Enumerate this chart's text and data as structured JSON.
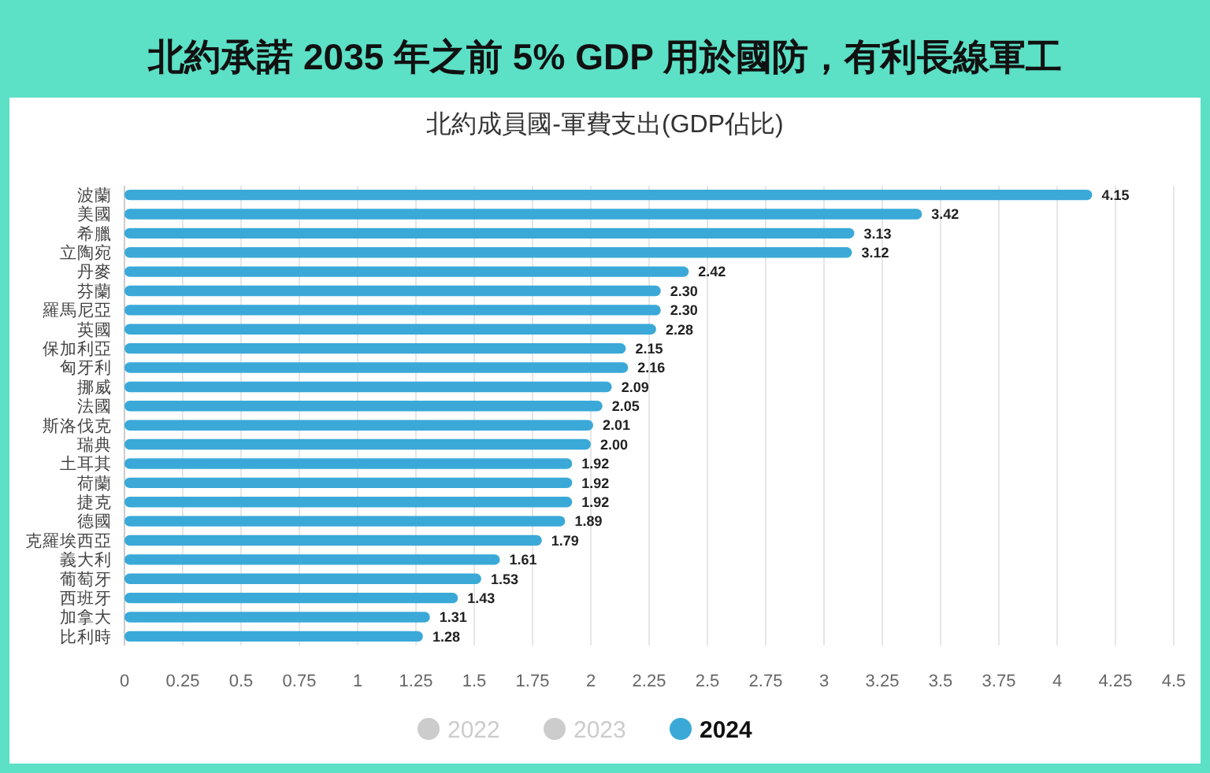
{
  "chart_data": {
    "type": "bar",
    "orientation": "horizontal",
    "title": "北約承諾 2035 年之前 5% GDP 用於國防，有利長線軍工",
    "subtitle": "北約成員國-軍費支出(GDP佔比)",
    "categories": [
      "波蘭",
      "美國",
      "希臘",
      "立陶宛",
      "丹麥",
      "芬蘭",
      "羅馬尼亞",
      "英國",
      "保加利亞",
      "匈牙利",
      "挪威",
      "法國",
      "斯洛伐克",
      "瑞典",
      "土耳其",
      "荷蘭",
      "捷克",
      "德國",
      "克羅埃西亞",
      "義大利",
      "葡萄牙",
      "西班牙",
      "加拿大",
      "比利時"
    ],
    "series": [
      {
        "name": "2022",
        "color": "#cccccc",
        "values": [
          null,
          null,
          null,
          null,
          null,
          null,
          null,
          null,
          null,
          null,
          null,
          null,
          null,
          null,
          null,
          null,
          null,
          null,
          null,
          null,
          null,
          null,
          null,
          null
        ]
      },
      {
        "name": "2023",
        "color": "#cccccc",
        "values": [
          null,
          null,
          null,
          null,
          null,
          null,
          null,
          null,
          null,
          null,
          null,
          null,
          null,
          null,
          null,
          null,
          null,
          null,
          null,
          null,
          null,
          null,
          null,
          null
        ]
      },
      {
        "name": "2024",
        "color": "#3aa9d8",
        "values": [
          4.15,
          3.42,
          3.13,
          3.12,
          2.42,
          2.3,
          2.3,
          2.28,
          2.15,
          2.16,
          2.09,
          2.05,
          2.01,
          2.0,
          1.92,
          1.92,
          1.92,
          1.89,
          1.79,
          1.61,
          1.53,
          1.43,
          1.31,
          1.28
        ]
      }
    ],
    "xlim": [
      0,
      4.5
    ],
    "xticks": [
      0,
      0.25,
      0.5,
      0.75,
      1,
      1.25,
      1.5,
      1.75,
      2,
      2.25,
      2.5,
      2.75,
      3,
      3.25,
      3.5,
      3.75,
      4,
      4.25,
      4.5
    ],
    "value_labels": [
      "4.15",
      "3.42",
      "3.13",
      "3.12",
      "2.42",
      "2.30",
      "2.30",
      "2.28",
      "2.15",
      "2.16",
      "2.09",
      "2.05",
      "2.01",
      "2.00",
      "1.92",
      "1.92",
      "1.92",
      "1.89",
      "1.79",
      "1.61",
      "1.53",
      "1.43",
      "1.31",
      "1.28"
    ],
    "grid": "x",
    "legend": "bottom"
  }
}
